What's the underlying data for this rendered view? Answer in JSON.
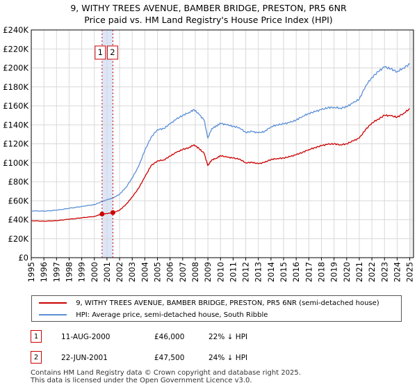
{
  "title_line1": "9, WITHY TREES AVENUE, BAMBER BRIDGE, PRESTON, PR5 6NR",
  "title_line2": "Price paid vs. HM Land Registry's House Price Index (HPI)",
  "colors": {
    "property": "#cc0000",
    "hpi": "#5b8fd6",
    "marker_line": "#cc0000",
    "band": "#dde6f7",
    "grid": "#d8d8d8"
  },
  "chart_data": {
    "type": "line",
    "title": "9, WITHY TREES AVENUE, BAMBER BRIDGE, PRESTON, PR5 6NR — Price paid vs. HM Land Registry's House Price Index (HPI)",
    "xlabel": "",
    "ylabel": "",
    "xlim": [
      1995.0,
      2025.3
    ],
    "ylim": [
      0,
      240000
    ],
    "y_ticks": [
      0,
      20000,
      40000,
      60000,
      80000,
      100000,
      120000,
      140000,
      160000,
      180000,
      200000,
      220000,
      240000
    ],
    "y_tick_labels": [
      "£0",
      "£20K",
      "£40K",
      "£60K",
      "£80K",
      "£100K",
      "£120K",
      "£140K",
      "£160K",
      "£180K",
      "£200K",
      "£220K",
      "£240K"
    ],
    "x_ticks": [
      1995,
      1996,
      1997,
      1998,
      1999,
      2000,
      2001,
      2002,
      2003,
      2004,
      2005,
      2006,
      2007,
      2008,
      2009,
      2010,
      2011,
      2012,
      2013,
      2014,
      2015,
      2016,
      2017,
      2018,
      2019,
      2020,
      2021,
      2022,
      2023,
      2024,
      2025
    ],
    "grid": true,
    "series": [
      {
        "name": "9, WITHY TREES AVENUE, BAMBER BRIDGE, PRESTON, PR5 6NR (semi-detached house)",
        "x": [
          1995.0,
          1996.0,
          1997.0,
          1998.0,
          1999.0,
          2000.0,
          2000.6,
          2001.0,
          2001.5,
          2002.0,
          2002.5,
          2003.0,
          2003.5,
          2004.0,
          2004.5,
          2005.0,
          2005.5,
          2006.0,
          2006.5,
          2007.0,
          2007.5,
          2007.9,
          2008.3,
          2008.7,
          2009.0,
          2009.3,
          2009.7,
          2010.0,
          2010.5,
          2011.0,
          2011.5,
          2012.0,
          2012.5,
          2013.0,
          2013.5,
          2014.0,
          2014.5,
          2015.0,
          2015.5,
          2016.0,
          2016.5,
          2017.0,
          2017.5,
          2018.0,
          2018.5,
          2019.0,
          2019.5,
          2020.0,
          2020.5,
          2021.0,
          2021.5,
          2022.0,
          2022.5,
          2023.0,
          2023.5,
          2024.0,
          2024.5,
          2025.0
        ],
        "y": [
          39000,
          38500,
          39000,
          40500,
          42000,
          43500,
          46000,
          46500,
          47500,
          50000,
          56000,
          64000,
          73000,
          85000,
          97000,
          102000,
          103000,
          107000,
          111000,
          114000,
          116000,
          119000,
          115000,
          110000,
          97000,
          103000,
          105000,
          107500,
          106000,
          105000,
          104000,
          100000,
          100500,
          99000,
          100500,
          103500,
          104500,
          105000,
          106500,
          108500,
          111000,
          114000,
          116000,
          118000,
          119500,
          120000,
          119000,
          120000,
          123000,
          126000,
          135000,
          142000,
          146000,
          150000,
          149500,
          148000,
          152000,
          157000
        ]
      },
      {
        "name": "HPI: Average price, semi-detached house, South Ribble",
        "x": [
          1995.0,
          1996.0,
          1997.0,
          1998.0,
          1999.0,
          2000.0,
          2000.6,
          2001.0,
          2001.5,
          2002.0,
          2002.5,
          2003.0,
          2003.5,
          2004.0,
          2004.5,
          2005.0,
          2005.5,
          2006.0,
          2006.5,
          2007.0,
          2007.5,
          2007.9,
          2008.3,
          2008.7,
          2009.0,
          2009.3,
          2009.7,
          2010.0,
          2010.5,
          2011.0,
          2011.5,
          2012.0,
          2012.5,
          2013.0,
          2013.5,
          2014.0,
          2014.5,
          2015.0,
          2015.5,
          2016.0,
          2016.5,
          2017.0,
          2017.5,
          2018.0,
          2018.5,
          2019.0,
          2019.5,
          2020.0,
          2020.5,
          2021.0,
          2021.5,
          2022.0,
          2022.5,
          2023.0,
          2023.5,
          2024.0,
          2024.5,
          2025.0
        ],
        "y": [
          49500,
          49000,
          50000,
          52000,
          54000,
          56000,
          59000,
          61000,
          63000,
          67000,
          74000,
          84000,
          96000,
          113000,
          127000,
          135000,
          136000,
          141000,
          146000,
          150000,
          153000,
          156000,
          151000,
          145000,
          126000,
          136000,
          139000,
          141500,
          140000,
          138500,
          137000,
          132000,
          133000,
          131500,
          133000,
          138000,
          140000,
          141000,
          142500,
          145000,
          149000,
          152000,
          154000,
          156000,
          158000,
          158500,
          157500,
          159000,
          163000,
          167000,
          181000,
          190000,
          196000,
          201000,
          199000,
          196000,
          200000,
          204000
        ]
      }
    ],
    "markers": [
      {
        "label": "1",
        "x": 2000.61,
        "y": 46000
      },
      {
        "label": "2",
        "x": 2001.47,
        "y": 47500
      }
    ],
    "marker_band": [
      2000.61,
      2001.47
    ]
  },
  "legend": {
    "property_label": "9, WITHY TREES AVENUE, BAMBER BRIDGE, PRESTON, PR5 6NR (semi-detached house)",
    "hpi_label": "HPI: Average price, semi-detached house, South Ribble"
  },
  "transactions": [
    {
      "num": "1",
      "date": "11-AUG-2000",
      "price": "£46,000",
      "hpi": "22% ↓ HPI"
    },
    {
      "num": "2",
      "date": "22-JUN-2001",
      "price": "£47,500",
      "hpi": "24% ↓ HPI"
    }
  ],
  "footer": {
    "line1": "Contains HM Land Registry data © Crown copyright and database right 2025.",
    "line2": "This data is licensed under the Open Government Licence v3.0."
  }
}
